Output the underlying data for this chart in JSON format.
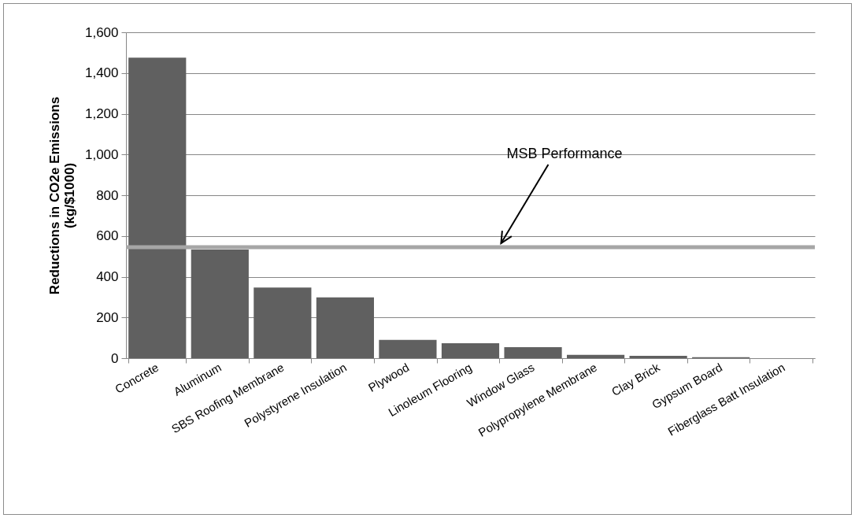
{
  "chart_data": {
    "type": "bar",
    "ylabel": "Reductions in CO2e Emissions\n(kg/$1000)",
    "categories": [
      "Concrete",
      "Aluminum",
      "SBS Roofing Membrane",
      "Polystyrene Insulation",
      "Plywood",
      "Linoleum Flooring",
      "Window Glass",
      "Polypropylene Membrane",
      "Clay Brick",
      "Gypsum Board",
      "Fiberglass Batt Insulation"
    ],
    "values": [
      1475,
      533,
      347,
      299,
      90,
      73,
      54,
      16,
      12,
      5,
      null
    ],
    "color": "#606060",
    "ylim": [
      0,
      1600
    ],
    "yticks": [
      0,
      200,
      400,
      600,
      800,
      {
        "value": 1000,
        "label": "1,000"
      },
      {
        "value": 1200,
        "label": "1,200"
      },
      {
        "value": 1400,
        "label": "1,400"
      },
      {
        "value": 1600,
        "label": "1,600"
      }
    ],
    "grid": "y",
    "ref_lines": [
      {
        "axis": "y",
        "value": 545,
        "label": "MSB Performance",
        "color": "#a6a6a6"
      }
    ]
  }
}
